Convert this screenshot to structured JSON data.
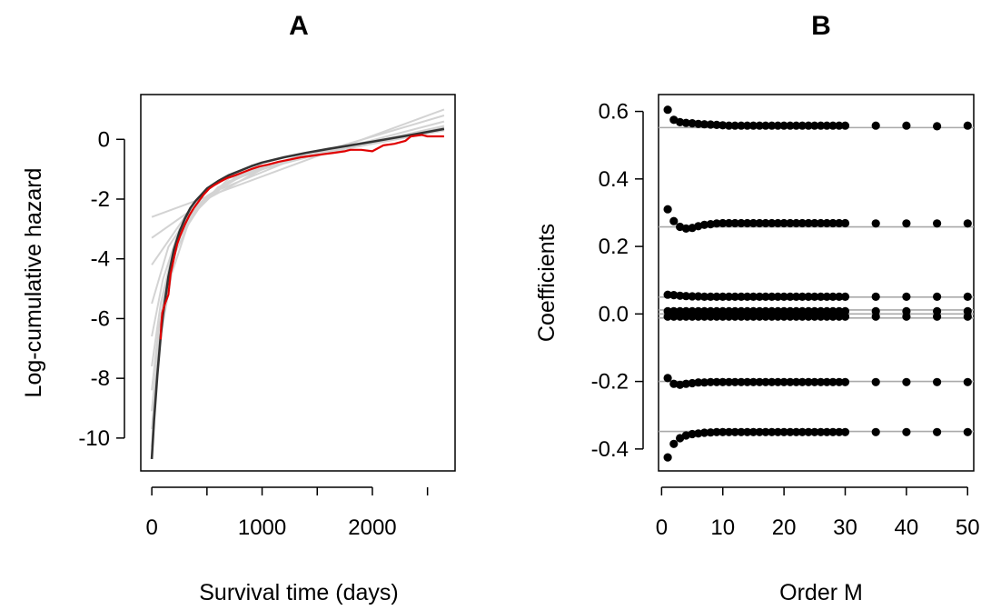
{
  "chart_data": [
    {
      "type": "line",
      "title": "A",
      "xlabel": "Survival time (days)",
      "ylabel": "Log-cumulative hazard",
      "xlim": [
        -100,
        2750
      ],
      "ylim": [
        -11.1,
        1.5
      ],
      "xticks": [
        0,
        1000,
        2000
      ],
      "yticks": [
        0,
        -2,
        -4,
        -6,
        -8,
        -10
      ],
      "grid": false,
      "legend": "none",
      "series": [
        {
          "role": "fitted-approximations",
          "color": "#d3d3d3",
          "values": [
            {
              "x": [
                0,
                2650
              ],
              "y": [
                -2.6,
                1.0
              ]
            },
            {
              "x": [
                0,
                500,
                1000,
                2650
              ],
              "y": [
                -3.3,
                -2.0,
                -1.0,
                0.8
              ]
            },
            {
              "x": [
                0,
                300,
                600,
                1200,
                2650
              ],
              "y": [
                -4.2,
                -2.6,
                -1.7,
                -0.8,
                0.6
              ]
            },
            {
              "x": [
                0,
                150,
                400,
                800,
                1500,
                2650
              ],
              "y": [
                -5.5,
                -3.6,
                -2.2,
                -1.2,
                -0.5,
                0.45
              ]
            },
            {
              "x": [
                0,
                100,
                250,
                500,
                900,
                1500,
                2650
              ],
              "y": [
                -6.6,
                -4.7,
                -3.0,
                -1.9,
                -1.0,
                -0.5,
                0.4
              ]
            },
            {
              "x": [
                0,
                80,
                200,
                400,
                700,
                1200,
                2000,
                2650
              ],
              "y": [
                -7.6,
                -5.5,
                -3.6,
                -2.3,
                -1.4,
                -0.75,
                -0.1,
                0.35
              ]
            },
            {
              "x": [
                0,
                60,
                150,
                300,
                600,
                1000,
                1600,
                2650
              ],
              "y": [
                -8.4,
                -6.4,
                -4.4,
                -2.8,
                -1.6,
                -0.95,
                -0.4,
                0.35
              ]
            },
            {
              "x": [
                0,
                50,
                120,
                250,
                500,
                900,
                1500,
                2650
              ],
              "y": [
                -9.1,
                -7.2,
                -5.1,
                -3.3,
                -1.9,
                -1.05,
                -0.5,
                0.3
              ]
            },
            {
              "x": [
                0,
                40,
                100,
                200,
                400,
                800,
                1400,
                2650
              ],
              "y": [
                -9.7,
                -7.9,
                -5.8,
                -3.9,
                -2.3,
                -1.15,
                -0.55,
                0.3
              ]
            },
            {
              "x": [
                0,
                30,
                80,
                180,
                350,
                700,
                1300,
                2650
              ],
              "y": [
                -10.3,
                -8.6,
                -6.6,
                -4.5,
                -2.6,
                -1.3,
                -0.6,
                0.3
              ]
            }
          ]
        },
        {
          "role": "smooth-fit",
          "color": "#333333",
          "x": [
            0,
            20,
            50,
            80,
            100,
            150,
            200,
            250,
            300,
            350,
            400,
            450,
            500,
            600,
            700,
            800,
            900,
            1000,
            1200,
            1400,
            1600,
            1800,
            2000,
            2200,
            2400,
            2650
          ],
          "y": [
            -10.7,
            -9.4,
            -7.9,
            -6.6,
            -5.9,
            -4.6,
            -3.7,
            -3.1,
            -2.65,
            -2.3,
            -2.05,
            -1.85,
            -1.65,
            -1.4,
            -1.2,
            -1.05,
            -0.9,
            -0.78,
            -0.6,
            -0.45,
            -0.32,
            -0.2,
            -0.08,
            0.05,
            0.18,
            0.35
          ]
        },
        {
          "role": "empirical",
          "color": "#e00000",
          "x": [
            80,
            85,
            95,
            120,
            150,
            170,
            200,
            230,
            260,
            300,
            340,
            380,
            420,
            470,
            520,
            560,
            620,
            680,
            760,
            830,
            900,
            980,
            1050,
            1150,
            1250,
            1350,
            1450,
            1550,
            1650,
            1750,
            1800,
            1900,
            2000,
            2100,
            2200,
            2300,
            2350,
            2450,
            2500,
            2650
          ],
          "y": [
            -6.7,
            -6.2,
            -5.8,
            -5.5,
            -5.2,
            -4.5,
            -4.0,
            -3.5,
            -3.2,
            -2.85,
            -2.55,
            -2.3,
            -2.1,
            -1.85,
            -1.65,
            -1.55,
            -1.42,
            -1.3,
            -1.2,
            -1.1,
            -1.0,
            -0.9,
            -0.85,
            -0.75,
            -0.68,
            -0.6,
            -0.55,
            -0.5,
            -0.45,
            -0.4,
            -0.35,
            -0.35,
            -0.4,
            -0.2,
            -0.15,
            -0.05,
            0.1,
            0.15,
            0.1,
            0.1
          ]
        }
      ]
    },
    {
      "type": "scatter",
      "title": "B",
      "xlabel": "Order M",
      "ylabel": "Coefficients",
      "xlim": [
        -0.5,
        51
      ],
      "ylim": [
        -0.465,
        0.65
      ],
      "xticks": [
        0,
        10,
        20,
        30,
        40,
        50
      ],
      "yticks": [
        0.6,
        0.4,
        0.2,
        0.0,
        -0.2,
        -0.4
      ],
      "ytick_labels": [
        "0.6",
        "0.4",
        "0.2",
        "0.0",
        "-0.2",
        "-0.4"
      ],
      "grid": false,
      "legend": "none",
      "reference_lines": [
        0.552,
        0.258,
        0.05,
        0.012,
        0.0,
        -0.012,
        -0.2,
        -0.348
      ],
      "reference_line_color": "#a9a9a9",
      "x": [
        1,
        2,
        3,
        4,
        5,
        6,
        7,
        8,
        9,
        10,
        11,
        12,
        13,
        14,
        15,
        16,
        17,
        18,
        19,
        20,
        21,
        22,
        23,
        24,
        25,
        26,
        27,
        28,
        29,
        30,
        35,
        40,
        45,
        50
      ],
      "series": [
        {
          "values": [
            0.605,
            0.575,
            0.568,
            0.566,
            0.565,
            0.563,
            0.562,
            0.561,
            0.56,
            0.559,
            0.558,
            0.558,
            0.558,
            0.558,
            0.558,
            0.558,
            0.558,
            0.558,
            0.558,
            0.558,
            0.558,
            0.558,
            0.558,
            0.558,
            0.558,
            0.558,
            0.558,
            0.558,
            0.558,
            0.558,
            0.558,
            0.558,
            0.556,
            0.558
          ]
        },
        {
          "values": [
            0.31,
            0.275,
            0.258,
            0.253,
            0.255,
            0.26,
            0.264,
            0.266,
            0.268,
            0.269,
            0.269,
            0.269,
            0.269,
            0.269,
            0.269,
            0.269,
            0.269,
            0.269,
            0.269,
            0.269,
            0.269,
            0.269,
            0.269,
            0.269,
            0.269,
            0.269,
            0.269,
            0.269,
            0.269,
            0.269,
            0.268,
            0.268,
            0.268,
            0.268
          ]
        },
        {
          "values": [
            0.057,
            0.056,
            0.054,
            0.053,
            0.052,
            0.052,
            0.051,
            0.051,
            0.051,
            0.051,
            0.051,
            0.051,
            0.051,
            0.051,
            0.051,
            0.051,
            0.051,
            0.051,
            0.051,
            0.051,
            0.051,
            0.051,
            0.051,
            0.051,
            0.051,
            0.051,
            0.051,
            0.051,
            0.051,
            0.051,
            0.051,
            0.051,
            0.051,
            0.051
          ]
        },
        {
          "values": [
            0.008,
            0.008,
            0.008,
            0.008,
            0.008,
            0.008,
            0.008,
            0.008,
            0.008,
            0.008,
            0.008,
            0.008,
            0.008,
            0.008,
            0.008,
            0.008,
            0.008,
            0.008,
            0.008,
            0.008,
            0.008,
            0.008,
            0.008,
            0.008,
            0.008,
            0.008,
            0.008,
            0.008,
            0.008,
            0.008,
            0.008,
            0.008,
            0.008,
            0.008
          ]
        },
        {
          "values": [
            -0.008,
            -0.008,
            -0.008,
            -0.008,
            -0.008,
            -0.008,
            -0.008,
            -0.008,
            -0.008,
            -0.008,
            -0.008,
            -0.008,
            -0.008,
            -0.008,
            -0.008,
            -0.008,
            -0.008,
            -0.008,
            -0.008,
            -0.008,
            -0.008,
            -0.008,
            -0.008,
            -0.008,
            -0.008,
            -0.008,
            -0.008,
            -0.008,
            -0.008,
            -0.008,
            -0.008,
            -0.008,
            -0.008,
            -0.008
          ]
        },
        {
          "values": [
            -0.19,
            -0.207,
            -0.21,
            -0.207,
            -0.205,
            -0.203,
            -0.203,
            -0.202,
            -0.202,
            -0.202,
            -0.202,
            -0.202,
            -0.202,
            -0.202,
            -0.202,
            -0.202,
            -0.202,
            -0.202,
            -0.202,
            -0.202,
            -0.202,
            -0.202,
            -0.202,
            -0.202,
            -0.202,
            -0.202,
            -0.202,
            -0.202,
            -0.202,
            -0.202,
            -0.202,
            -0.202,
            -0.202,
            -0.202
          ]
        },
        {
          "values": [
            -0.425,
            -0.385,
            -0.368,
            -0.36,
            -0.356,
            -0.354,
            -0.352,
            -0.351,
            -0.35,
            -0.35,
            -0.35,
            -0.35,
            -0.35,
            -0.35,
            -0.35,
            -0.35,
            -0.35,
            -0.35,
            -0.35,
            -0.35,
            -0.35,
            -0.35,
            -0.35,
            -0.35,
            -0.35,
            -0.35,
            -0.35,
            -0.35,
            -0.35,
            -0.35,
            -0.35,
            -0.35,
            -0.35,
            -0.35
          ]
        }
      ]
    }
  ]
}
